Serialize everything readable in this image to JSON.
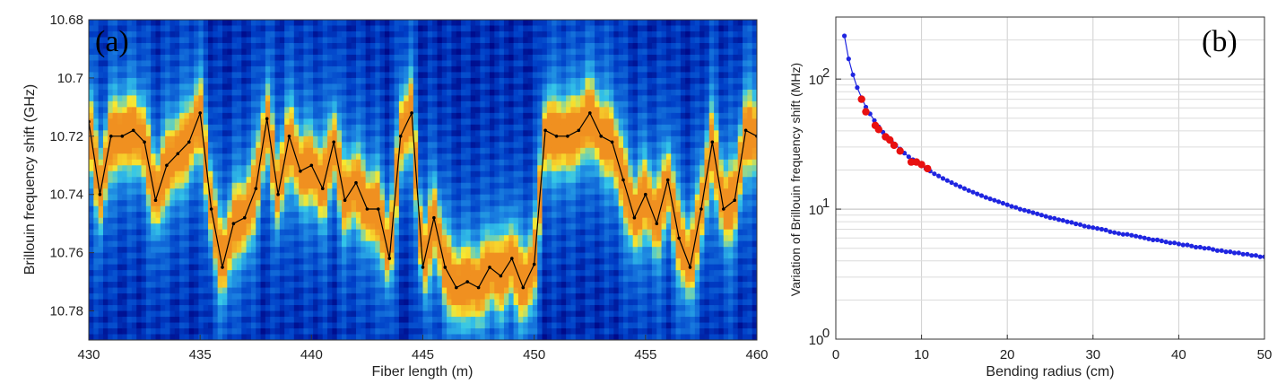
{
  "chart_data": [
    {
      "type": "heatmap",
      "panel_label": "(a)",
      "xlabel": "Fiber length (m)",
      "ylabel": "Brillouin frequency shift (GHz)",
      "xlim": [
        430,
        460
      ],
      "ylim": [
        10.79,
        10.68
      ],
      "xticks": [
        430,
        435,
        440,
        445,
        450,
        455,
        460
      ],
      "yticks": [
        10.68,
        10.7,
        10.72,
        10.74,
        10.76,
        10.78
      ],
      "ytick_labels": [
        "10.68",
        "10.7",
        "10.72",
        "10.74",
        "10.76",
        "10.78"
      ],
      "colormap": [
        "#00007f",
        "#0040c8",
        "#1a7fe0",
        "#35c7e8",
        "#f8e830",
        "#f09020"
      ],
      "trace_color": "#000000",
      "series": [
        {
          "x": [
            430.0,
            430.5,
            431.0,
            431.5,
            432.0,
            432.5,
            433.0,
            433.5,
            434.0,
            434.5,
            435.0,
            435.5,
            436.0,
            436.5,
            437.0,
            437.5,
            438.0,
            438.5,
            439.0,
            439.5,
            440.0,
            440.5,
            441.0,
            441.5,
            442.0,
            442.5,
            443.0,
            443.5,
            444.0,
            444.5,
            445.0,
            445.5,
            446.0,
            446.5,
            447.0,
            447.5,
            448.0,
            448.5,
            449.0,
            449.5,
            450.0,
            450.5,
            451.0,
            451.5,
            452.0,
            452.5,
            453.0,
            453.5,
            454.0,
            454.5,
            455.0,
            455.5,
            456.0,
            456.5,
            457.0,
            457.5,
            458.0,
            458.5,
            459.0,
            459.5,
            460.0
          ],
          "y": [
            10.715,
            10.74,
            10.72,
            10.72,
            10.718,
            10.722,
            10.742,
            10.73,
            10.726,
            10.722,
            10.712,
            10.745,
            10.765,
            10.75,
            10.748,
            10.738,
            10.714,
            10.74,
            10.72,
            10.732,
            10.73,
            10.738,
            10.722,
            10.742,
            10.736,
            10.745,
            10.745,
            10.762,
            10.72,
            10.712,
            10.765,
            10.748,
            10.765,
            10.772,
            10.77,
            10.772,
            10.765,
            10.768,
            10.762,
            10.772,
            10.764,
            10.718,
            10.72,
            10.72,
            10.718,
            10.712,
            10.72,
            10.722,
            10.735,
            10.748,
            10.74,
            10.75,
            10.735,
            10.755,
            10.765,
            10.745,
            10.722,
            10.745,
            10.742,
            10.718,
            10.72
          ]
        }
      ]
    },
    {
      "type": "scatter",
      "panel_label": "(b)",
      "xlabel": "Bending radius (cm)",
      "ylabel": "Variation of Brillouin frequency shift (MHz)",
      "xlim": [
        0,
        50
      ],
      "ylim": [
        1,
        300
      ],
      "yscale": "log",
      "grid": true,
      "xticks": [
        0,
        10,
        20,
        30,
        40,
        50
      ],
      "ytick_labels": [
        "10^0",
        "10^1",
        "10^2"
      ],
      "series": [
        {
          "color": "#1f25e0",
          "style": "line-with-markers",
          "x": [
            1,
            1.5,
            2,
            2.5,
            3,
            3.5,
            4,
            4.5,
            5,
            5.5,
            6,
            6.5,
            7,
            7.5,
            8,
            8.5,
            9,
            9.5,
            10,
            10.5,
            11,
            11.5,
            12,
            12.5,
            13,
            13.5,
            14,
            14.5,
            15,
            15.5,
            16,
            16.5,
            17,
            17.5,
            18,
            18.5,
            19,
            19.5,
            20,
            20.5,
            21,
            21.5,
            22,
            22.5,
            23,
            23.5,
            24,
            24.5,
            25,
            25.5,
            26,
            26.5,
            27,
            27.5,
            28,
            28.5,
            29,
            29.5,
            30,
            30.5,
            31,
            31.5,
            32,
            32.5,
            33,
            33.5,
            34,
            34.5,
            35,
            35.5,
            36,
            36.5,
            37,
            37.5,
            38,
            38.5,
            39,
            39.5,
            40,
            40.5,
            41,
            41.5,
            42,
            42.5,
            43,
            43.5,
            44,
            44.5,
            45,
            45.5,
            46,
            46.5,
            47,
            47.5,
            48,
            48.5,
            49,
            49.5,
            50
          ],
          "y": [
            215,
            143,
            108,
            86,
            72,
            61,
            54,
            48,
            43,
            39,
            36,
            33,
            31,
            29,
            27,
            25.3,
            24,
            22.7,
            21.6,
            20.5,
            19.6,
            18.7,
            18,
            17.2,
            16.6,
            16,
            15.4,
            14.9,
            14.4,
            13.9,
            13.5,
            13.1,
            12.7,
            12.3,
            12,
            11.7,
            11.4,
            11.1,
            10.8,
            10.5,
            10.3,
            10,
            9.8,
            9.6,
            9.4,
            9.2,
            9,
            8.8,
            8.6,
            8.5,
            8.3,
            8.2,
            8,
            7.9,
            7.7,
            7.6,
            7.4,
            7.3,
            7.2,
            7.1,
            7,
            6.9,
            6.7,
            6.6,
            6.5,
            6.4,
            6.4,
            6.3,
            6.2,
            6.1,
            6,
            5.9,
            5.8,
            5.8,
            5.7,
            5.6,
            5.5,
            5.5,
            5.4,
            5.3,
            5.3,
            5.2,
            5.1,
            5.1,
            5,
            5,
            4.9,
            4.8,
            4.8,
            4.7,
            4.7,
            4.6,
            4.6,
            4.5,
            4.5,
            4.4,
            4.4,
            4.3,
            4.3
          ]
        },
        {
          "color": "#e81010",
          "style": "markers",
          "x": [
            3,
            3.5,
            4.6,
            5,
            5.8,
            6.3,
            6.8,
            7.5,
            8.8,
            9.4,
            10,
            10.7
          ],
          "y": [
            70,
            56,
            44,
            41,
            36,
            34,
            31,
            28,
            23,
            23,
            22,
            20.5
          ]
        }
      ]
    }
  ]
}
